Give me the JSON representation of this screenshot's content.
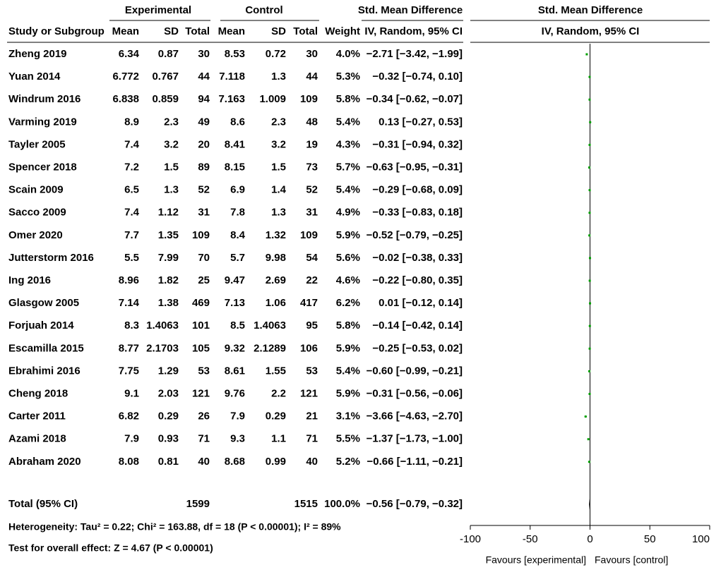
{
  "header": {
    "group_experimental": "Experimental",
    "group_control": "Control",
    "group_smd": "Std. Mean Difference",
    "plot_title": "Std. Mean Difference",
    "plot_subtitle": "IV, Random, 95% CI",
    "columns": [
      "Study or Subgroup",
      "Mean",
      "SD",
      "Total",
      "Mean",
      "SD",
      "Total",
      "Weight",
      "IV, Random, 95% CI"
    ]
  },
  "chart_data": {
    "type": "forest",
    "color": "#00a000",
    "xlim": [
      -100,
      100
    ],
    "xticks": [
      -100,
      -50,
      0,
      50,
      100
    ],
    "favours_left": "Favours [experimental]",
    "favours_right": "Favours [control]",
    "rows": [
      {
        "study": "Zheng 2019",
        "exp_mean": "6.34",
        "exp_sd": "0.87",
        "exp_total": "30",
        "ctl_mean": "8.53",
        "ctl_sd": "0.72",
        "ctl_total": "30",
        "weight": "4.0%",
        "ci_label": "−2.71 [−3.42, −1.99]",
        "smd": -2.71,
        "ci_low": -3.42,
        "ci_high": -1.99
      },
      {
        "study": "Yuan 2014",
        "exp_mean": "6.772",
        "exp_sd": "0.767",
        "exp_total": "44",
        "ctl_mean": "7.118",
        "ctl_sd": "1.3",
        "ctl_total": "44",
        "weight": "5.3%",
        "ci_label": "−0.32 [−0.74, 0.10]",
        "smd": -0.32,
        "ci_low": -0.74,
        "ci_high": 0.1
      },
      {
        "study": "Windrum 2016",
        "exp_mean": "6.838",
        "exp_sd": "0.859",
        "exp_total": "94",
        "ctl_mean": "7.163",
        "ctl_sd": "1.009",
        "ctl_total": "109",
        "weight": "5.8%",
        "ci_label": "−0.34 [−0.62, −0.07]",
        "smd": -0.34,
        "ci_low": -0.62,
        "ci_high": -0.07
      },
      {
        "study": "Varming 2019",
        "exp_mean": "8.9",
        "exp_sd": "2.3",
        "exp_total": "49",
        "ctl_mean": "8.6",
        "ctl_sd": "2.3",
        "ctl_total": "48",
        "weight": "5.4%",
        "ci_label": "0.13 [−0.27, 0.53]",
        "smd": 0.13,
        "ci_low": -0.27,
        "ci_high": 0.53
      },
      {
        "study": "Tayler 2005",
        "exp_mean": "7.4",
        "exp_sd": "3.2",
        "exp_total": "20",
        "ctl_mean": "8.41",
        "ctl_sd": "3.2",
        "ctl_total": "19",
        "weight": "4.3%",
        "ci_label": "−0.31 [−0.94, 0.32]",
        "smd": -0.31,
        "ci_low": -0.94,
        "ci_high": 0.32
      },
      {
        "study": "Spencer 2018",
        "exp_mean": "7.2",
        "exp_sd": "1.5",
        "exp_total": "89",
        "ctl_mean": "8.15",
        "ctl_sd": "1.5",
        "ctl_total": "73",
        "weight": "5.7%",
        "ci_label": "−0.63 [−0.95, −0.31]",
        "smd": -0.63,
        "ci_low": -0.95,
        "ci_high": -0.31
      },
      {
        "study": "Scain 2009",
        "exp_mean": "6.5",
        "exp_sd": "1.3",
        "exp_total": "52",
        "ctl_mean": "6.9",
        "ctl_sd": "1.4",
        "ctl_total": "52",
        "weight": "5.4%",
        "ci_label": "−0.29 [−0.68, 0.09]",
        "smd": -0.29,
        "ci_low": -0.68,
        "ci_high": 0.09
      },
      {
        "study": "Sacco 2009",
        "exp_mean": "7.4",
        "exp_sd": "1.12",
        "exp_total": "31",
        "ctl_mean": "7.8",
        "ctl_sd": "1.3",
        "ctl_total": "31",
        "weight": "4.9%",
        "ci_label": "−0.33 [−0.83, 0.18]",
        "smd": -0.33,
        "ci_low": -0.83,
        "ci_high": 0.18
      },
      {
        "study": "Omer 2020",
        "exp_mean": "7.7",
        "exp_sd": "1.35",
        "exp_total": "109",
        "ctl_mean": "8.4",
        "ctl_sd": "1.32",
        "ctl_total": "109",
        "weight": "5.9%",
        "ci_label": "−0.52 [−0.79, −0.25]",
        "smd": -0.52,
        "ci_low": -0.79,
        "ci_high": -0.25
      },
      {
        "study": "Jutterstorm 2016",
        "exp_mean": "5.5",
        "exp_sd": "7.99",
        "exp_total": "70",
        "ctl_mean": "5.7",
        "ctl_sd": "9.98",
        "ctl_total": "54",
        "weight": "5.6%",
        "ci_label": "−0.02 [−0.38, 0.33]",
        "smd": -0.02,
        "ci_low": -0.38,
        "ci_high": 0.33
      },
      {
        "study": "Ing 2016",
        "exp_mean": "8.96",
        "exp_sd": "1.82",
        "exp_total": "25",
        "ctl_mean": "9.47",
        "ctl_sd": "2.69",
        "ctl_total": "22",
        "weight": "4.6%",
        "ci_label": "−0.22 [−0.80, 0.35]",
        "smd": -0.22,
        "ci_low": -0.8,
        "ci_high": 0.35
      },
      {
        "study": "Glasgow 2005",
        "exp_mean": "7.14",
        "exp_sd": "1.38",
        "exp_total": "469",
        "ctl_mean": "7.13",
        "ctl_sd": "1.06",
        "ctl_total": "417",
        "weight": "6.2%",
        "ci_label": "0.01 [−0.12, 0.14]",
        "smd": 0.01,
        "ci_low": -0.12,
        "ci_high": 0.14
      },
      {
        "study": "Forjuah 2014",
        "exp_mean": "8.3",
        "exp_sd": "1.4063",
        "exp_total": "101",
        "ctl_mean": "8.5",
        "ctl_sd": "1.4063",
        "ctl_total": "95",
        "weight": "5.8%",
        "ci_label": "−0.14 [−0.42, 0.14]",
        "smd": -0.14,
        "ci_low": -0.42,
        "ci_high": 0.14
      },
      {
        "study": "Escamilla 2015",
        "exp_mean": "8.77",
        "exp_sd": "2.1703",
        "exp_total": "105",
        "ctl_mean": "9.32",
        "ctl_sd": "2.1289",
        "ctl_total": "106",
        "weight": "5.9%",
        "ci_label": "−0.25 [−0.53, 0.02]",
        "smd": -0.25,
        "ci_low": -0.53,
        "ci_high": 0.02
      },
      {
        "study": "Ebrahimi 2016",
        "exp_mean": "7.75",
        "exp_sd": "1.29",
        "exp_total": "53",
        "ctl_mean": "8.61",
        "ctl_sd": "1.55",
        "ctl_total": "53",
        "weight": "5.4%",
        "ci_label": "−0.60 [−0.99, −0.21]",
        "smd": -0.6,
        "ci_low": -0.99,
        "ci_high": -0.21
      },
      {
        "study": "Cheng 2018",
        "exp_mean": "9.1",
        "exp_sd": "2.03",
        "exp_total": "121",
        "ctl_mean": "9.76",
        "ctl_sd": "2.2",
        "ctl_total": "121",
        "weight": "5.9%",
        "ci_label": "−0.31 [−0.56, −0.06]",
        "smd": -0.31,
        "ci_low": -0.56,
        "ci_high": -0.06
      },
      {
        "study": "Carter 2011",
        "exp_mean": "6.82",
        "exp_sd": "0.29",
        "exp_total": "26",
        "ctl_mean": "7.9",
        "ctl_sd": "0.29",
        "ctl_total": "21",
        "weight": "3.1%",
        "ci_label": "−3.66 [−4.63, −2.70]",
        "smd": -3.66,
        "ci_low": -4.63,
        "ci_high": -2.7
      },
      {
        "study": "Azami 2018",
        "exp_mean": "7.9",
        "exp_sd": "0.93",
        "exp_total": "71",
        "ctl_mean": "9.3",
        "ctl_sd": "1.1",
        "ctl_total": "71",
        "weight": "5.5%",
        "ci_label": "−1.37 [−1.73, −1.00]",
        "smd": -1.37,
        "ci_low": -1.73,
        "ci_high": -1.0
      },
      {
        "study": "Abraham 2020",
        "exp_mean": "8.08",
        "exp_sd": "0.81",
        "exp_total": "40",
        "ctl_mean": "8.68",
        "ctl_sd": "0.99",
        "ctl_total": "40",
        "weight": "5.2%",
        "ci_label": "−0.66 [−1.11, −0.21]",
        "smd": -0.66,
        "ci_low": -1.11,
        "ci_high": -0.21
      }
    ],
    "total": {
      "study": "Total (95% CI)",
      "exp_total": "1599",
      "ctl_total": "1515",
      "weight": "100.0%",
      "ci_label": "−0.56 [−0.79, −0.32]",
      "smd": -0.56,
      "ci_low": -0.79,
      "ci_high": -0.32
    },
    "heterogeneity": "Heterogeneity: Tau² = 0.22; Chi² = 163.88, df = 18 (P < 0.00001); I² = 89%",
    "overall_effect": "Test for overall effect: Z = 4.67 (P < 0.00001)"
  }
}
